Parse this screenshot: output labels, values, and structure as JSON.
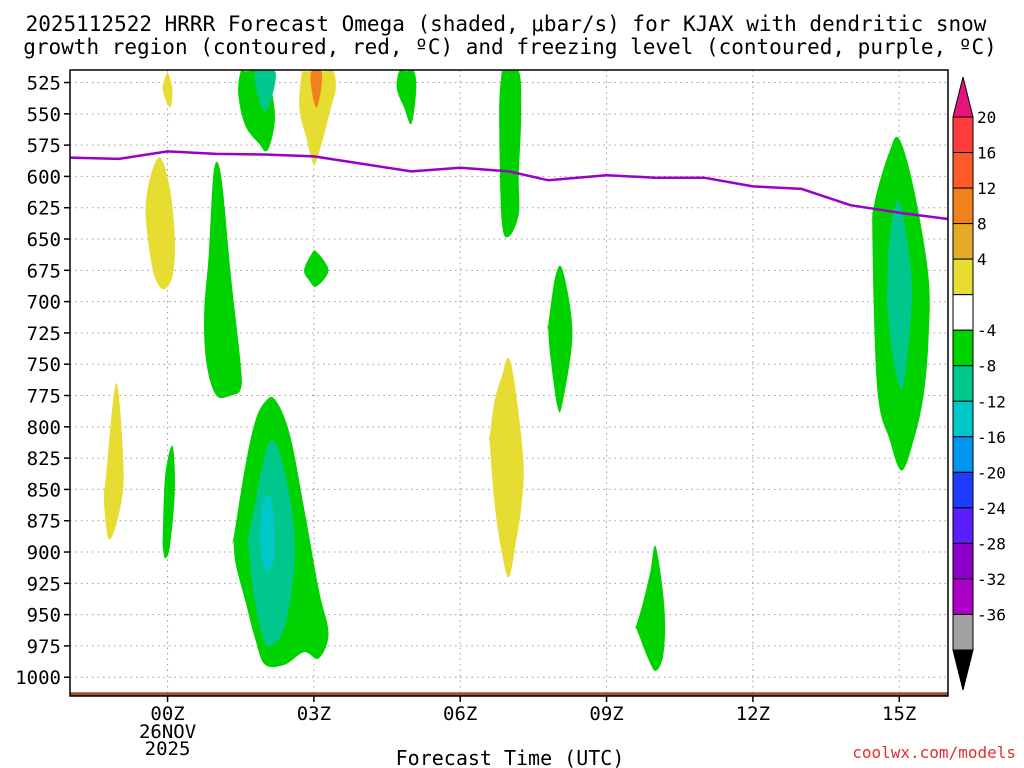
{
  "chart_data": {
    "type": "heatmap",
    "title_line1": "2025112522 HRRR Forecast Omega (shaded, μbar/s) for KJAX with dendritic snow",
    "title_line2": "growth region (contoured, red, ºC) and freezing level (contoured, purple, ºC)",
    "xlabel": "Forecast Time (UTC)",
    "credit": "coolwx.com/models",
    "x_range": [
      -2,
      16
    ],
    "y_range": [
      1015,
      515
    ],
    "x_ticks": [
      {
        "x": 0,
        "label": "00Z",
        "sub1": "26NOV",
        "sub2": "2025"
      },
      {
        "x": 3,
        "label": "03Z"
      },
      {
        "x": 6,
        "label": "06Z"
      },
      {
        "x": 9,
        "label": "09Z"
      },
      {
        "x": 12,
        "label": "12Z"
      },
      {
        "x": 15,
        "label": "15Z"
      }
    ],
    "y_ticks": [
      525,
      550,
      575,
      600,
      625,
      650,
      675,
      700,
      725,
      750,
      775,
      800,
      825,
      850,
      875,
      900,
      925,
      950,
      975,
      1000
    ],
    "colorbar": {
      "labels": [
        "20",
        "16",
        "12",
        "8",
        "4",
        "-4",
        "-8",
        "-12",
        "-16",
        "-20",
        "-24",
        "-28",
        "-32",
        "-36"
      ],
      "bins": [
        {
          "color": "#ff3c3c"
        },
        {
          "color": "#ff5a28"
        },
        {
          "color": "#f0821e"
        },
        {
          "color": "#e6aa28"
        },
        {
          "color": "#e6dc32"
        },
        {
          "color": "#ffffff"
        },
        {
          "color": "#00d200"
        },
        {
          "color": "#00c88c"
        },
        {
          "color": "#00c8c8"
        },
        {
          "color": "#0096f0"
        },
        {
          "color": "#1e3cff"
        },
        {
          "color": "#5a1eff"
        },
        {
          "color": "#8c00c8"
        },
        {
          "color": "#aa00c8"
        },
        {
          "color": "#a0a0a0"
        }
      ],
      "top_color": "#e6147a",
      "bottom_color": "#000000"
    },
    "freezing_level": {
      "color": "#9900c8",
      "x": [
        -2,
        -1,
        0,
        1,
        2,
        3,
        4,
        5,
        6,
        7,
        7.8,
        9,
        10,
        11,
        12,
        13,
        14,
        15,
        16
      ],
      "y": [
        585,
        586,
        580,
        582,
        582.5,
        584,
        590,
        596,
        593,
        596,
        603,
        599,
        601,
        601,
        608,
        610,
        623,
        629,
        634
      ]
    },
    "ground": {
      "color": "#a0522d",
      "pressure": 1012
    },
    "omega_regions": [
      {
        "color": "#e6dc32",
        "x": [
          0,
          -0.1,
          0.05,
          0.1,
          0
        ],
        "y": [
          516,
          530,
          545,
          530,
          516
        ]
      },
      {
        "color": "#00d200",
        "x": [
          1.5,
          1.45,
          1.6,
          1.9,
          2.0,
          2.1,
          2.2,
          2.15,
          2.0,
          1.6
        ],
        "y": [
          516,
          535,
          560,
          575,
          580,
          575,
          555,
          535,
          516,
          516
        ]
      },
      {
        "color": "#00c88c",
        "x": [
          1.8,
          1.85,
          2.0,
          2.15,
          2.2
        ],
        "y": [
          516,
          535,
          548,
          535,
          516
        ]
      },
      {
        "color": "#e6dc32",
        "x": [
          2.75,
          2.7,
          2.85,
          3.0,
          3.15,
          3.35,
          3.45,
          3.4,
          3.2,
          2.75
        ],
        "y": [
          516,
          545,
          570,
          590,
          575,
          545,
          530,
          516,
          516,
          516
        ]
      },
      {
        "color": "#f0821e",
        "x": [
          2.95,
          2.95,
          3.05,
          3.15,
          3.15
        ],
        "y": [
          516,
          530,
          545,
          530,
          516
        ]
      },
      {
        "color": "#00d200",
        "x": [
          4.75,
          4.7,
          4.85,
          5.0,
          5.1,
          5.05,
          4.9
        ],
        "y": [
          516,
          530,
          545,
          558,
          530,
          516,
          516
        ]
      },
      {
        "color": "#00d200",
        "x": [
          6.85,
          6.8,
          6.85,
          7.0,
          7.2,
          7.2,
          7.25,
          7.2,
          6.85
        ],
        "y": [
          516,
          550,
          635,
          648,
          630,
          600,
          550,
          516,
          516
        ]
      },
      {
        "color": "#e6dc32",
        "x": [
          -0.45,
          -0.35,
          -0.15,
          0.05,
          0.15,
          0.1,
          -0.1,
          -0.3
        ],
        "y": [
          630,
          600,
          585,
          610,
          650,
          680,
          690,
          675
        ]
      },
      {
        "color": "#00d200",
        "x": [
          0.75,
          0.85,
          0.95,
          1.1,
          1.3,
          1.5,
          1.5,
          1.3,
          1.0,
          0.8
        ],
        "y": [
          710,
          660,
          595,
          600,
          680,
          750,
          770,
          775,
          775,
          750
        ]
      },
      {
        "color": "#00d200",
        "x": [
          2.8,
          2.95,
          3.05,
          3.3,
          3.05,
          2.9
        ],
        "y": [
          675,
          662,
          660,
          675,
          688,
          683
        ]
      },
      {
        "color": "#00d200",
        "x": [
          7.8,
          7.95,
          8.1,
          8.3,
          8.1,
          8.0,
          7.85,
          7.8
        ],
        "y": [
          720,
          680,
          675,
          725,
          780,
          785,
          745,
          720
        ]
      },
      {
        "color": "#00d200",
        "x": [
          14.45,
          14.5,
          14.8,
          15.0,
          15.3,
          15.6,
          15.6,
          15.5,
          15.3,
          15.05,
          14.8,
          14.55
        ],
        "y": [
          650,
          620,
          580,
          570,
          610,
          680,
          730,
          775,
          810,
          835,
          810,
          770
        ]
      },
      {
        "color": "#00c88c",
        "x": [
          14.75,
          14.8,
          15.0,
          15.25,
          15.2,
          15.05,
          14.85,
          14.75
        ],
        "y": [
          700,
          650,
          620,
          680,
          730,
          770,
          740,
          700
        ]
      },
      {
        "color": "#e6dc32",
        "x": [
          -1.25,
          -1.05,
          -0.9,
          -1.0,
          -1.2,
          -1.3
        ],
        "y": [
          835,
          765,
          835,
          870,
          890,
          860
        ]
      },
      {
        "color": "#00d200",
        "x": [
          -0.1,
          -0.05,
          0.1,
          0.15,
          0.05,
          -0.05,
          -0.1
        ],
        "y": [
          890,
          840,
          815,
          850,
          895,
          905,
          895
        ]
      },
      {
        "color": "#e6dc32",
        "x": [
          6.6,
          6.7,
          6.85,
          7.0,
          7.15,
          7.3,
          7.25,
          7.15,
          7.0,
          6.85,
          6.7,
          6.6
        ],
        "y": [
          810,
          780,
          760,
          745,
          775,
          830,
          865,
          890,
          920,
          900,
          860,
          810
        ]
      },
      {
        "color": "#00d200",
        "x": [
          1.35,
          1.6,
          1.8,
          2.0,
          2.2,
          2.5,
          2.8,
          3.1,
          3.3,
          3.1,
          2.8,
          2.4,
          2.0,
          1.8,
          1.6,
          1.4,
          1.35
        ],
        "y": [
          890,
          830,
          795,
          780,
          778,
          805,
          865,
          930,
          965,
          985,
          980,
          990,
          990,
          970,
          940,
          910,
          890
        ]
      },
      {
        "color": "#00c88c",
        "x": [
          1.65,
          1.8,
          1.95,
          2.15,
          2.4,
          2.6,
          2.55,
          2.35,
          2.05,
          1.9,
          1.75,
          1.65
        ],
        "y": [
          890,
          860,
          830,
          810,
          835,
          885,
          930,
          965,
          975,
          960,
          930,
          890
        ]
      },
      {
        "color": "#00c8c8",
        "x": [
          1.9,
          1.95,
          2.05,
          2.15,
          2.2,
          2.15,
          2.0,
          1.9
        ],
        "y": [
          880,
          860,
          855,
          862,
          895,
          910,
          915,
          895
        ]
      },
      {
        "color": "#00d200",
        "x": [
          9.6,
          9.75,
          9.9,
          10.0,
          10.15,
          10.2,
          10.15,
          10.0,
          9.85,
          9.7,
          9.6
        ],
        "y": [
          960,
          940,
          915,
          895,
          930,
          960,
          985,
          995,
          985,
          970,
          960
        ]
      }
    ]
  }
}
